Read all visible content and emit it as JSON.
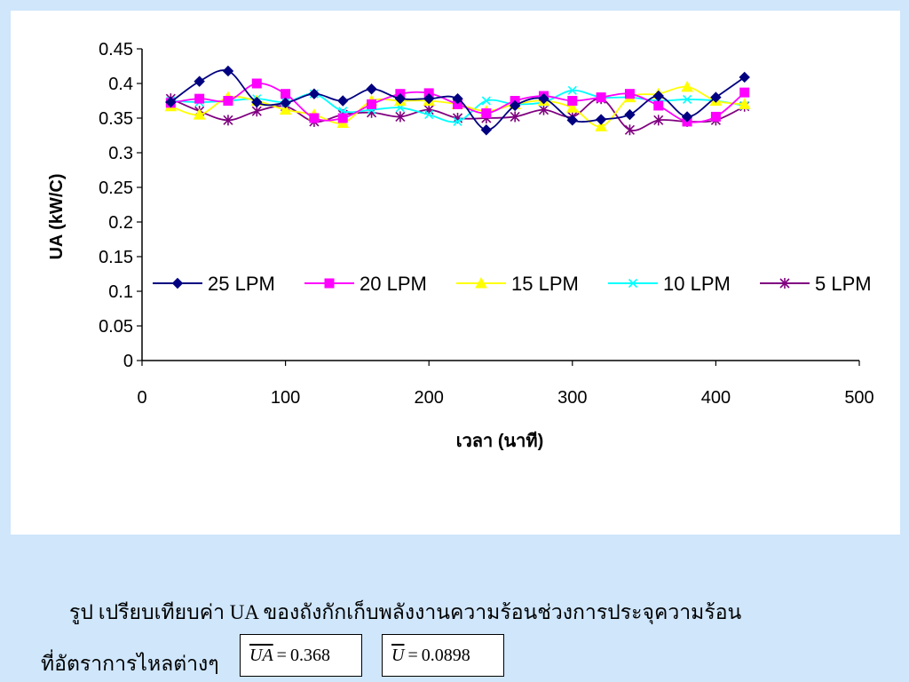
{
  "chart_data": {
    "type": "line",
    "xlabel": "เวลา (นาที)",
    "ylabel": "UA (kW/C)",
    "xlim": [
      0,
      500
    ],
    "ylim": [
      0,
      0.45
    ],
    "x_ticks": [
      "0",
      "100",
      "200",
      "300",
      "400",
      "500"
    ],
    "y_ticks": [
      "0",
      "0.05",
      "0.1",
      "0.15",
      "0.2",
      "0.25",
      "0.3",
      "0.35",
      "0.4",
      "0.45"
    ],
    "grid": false,
    "legend_position": "inside-center",
    "x": [
      20,
      40,
      60,
      80,
      100,
      120,
      140,
      160,
      180,
      200,
      220,
      240,
      260,
      280,
      300,
      320,
      340,
      360,
      380,
      400,
      420
    ],
    "series": [
      {
        "name": "25 LPM",
        "color": "#000080",
        "marker": "diamond",
        "values": [
          0.373,
          0.403,
          0.418,
          0.373,
          0.372,
          0.385,
          0.375,
          0.392,
          0.378,
          0.378,
          0.378,
          0.333,
          0.368,
          0.378,
          0.347,
          0.348,
          0.355,
          0.382,
          0.352,
          0.38,
          0.409
        ]
      },
      {
        "name": "20 LPM",
        "color": "#ff00ff",
        "marker": "square",
        "values": [
          0.372,
          0.378,
          0.375,
          0.4,
          0.385,
          0.35,
          0.35,
          0.37,
          0.385,
          0.386,
          0.37,
          0.357,
          0.375,
          0.382,
          0.375,
          0.38,
          0.385,
          0.368,
          0.345,
          0.352,
          0.387
        ]
      },
      {
        "name": "15 LPM",
        "color": "#ffff00",
        "marker": "triangle",
        "values": [
          0.367,
          0.355,
          0.38,
          0.375,
          0.362,
          0.355,
          0.343,
          0.375,
          0.375,
          0.375,
          0.37,
          0.36,
          0.37,
          0.375,
          0.365,
          0.338,
          0.38,
          0.385,
          0.395,
          0.375,
          0.37
        ]
      },
      {
        "name": "10 LPM",
        "color": "#00ffff",
        "marker": "x",
        "values": [
          0.375,
          0.373,
          0.375,
          0.378,
          0.373,
          0.385,
          0.36,
          0.362,
          0.365,
          0.355,
          0.345,
          0.375,
          0.37,
          0.373,
          0.39,
          0.38,
          0.38,
          0.375,
          0.377,
          0.375,
          0.368
        ]
      },
      {
        "name": "5 LPM",
        "color": "#800080",
        "marker": "star",
        "values": [
          0.378,
          0.36,
          0.347,
          0.36,
          0.367,
          0.345,
          0.355,
          0.358,
          0.352,
          0.362,
          0.35,
          0.35,
          0.352,
          0.362,
          0.352,
          0.378,
          0.333,
          0.347,
          0.345,
          0.347,
          0.367
        ]
      }
    ]
  },
  "caption": {
    "line1": "รูป เปรียบเทียบค่า UA ของถังกักเก็บพลังงานความร้อนช่วงการประจุความร้อน",
    "line2": "ที่อัตราการไหลต่างๆ"
  },
  "formulas": {
    "ua_symbol": "UA",
    "ua_value": "0.368",
    "u_symbol": "U",
    "u_value": "0.0898",
    "equals": "="
  }
}
